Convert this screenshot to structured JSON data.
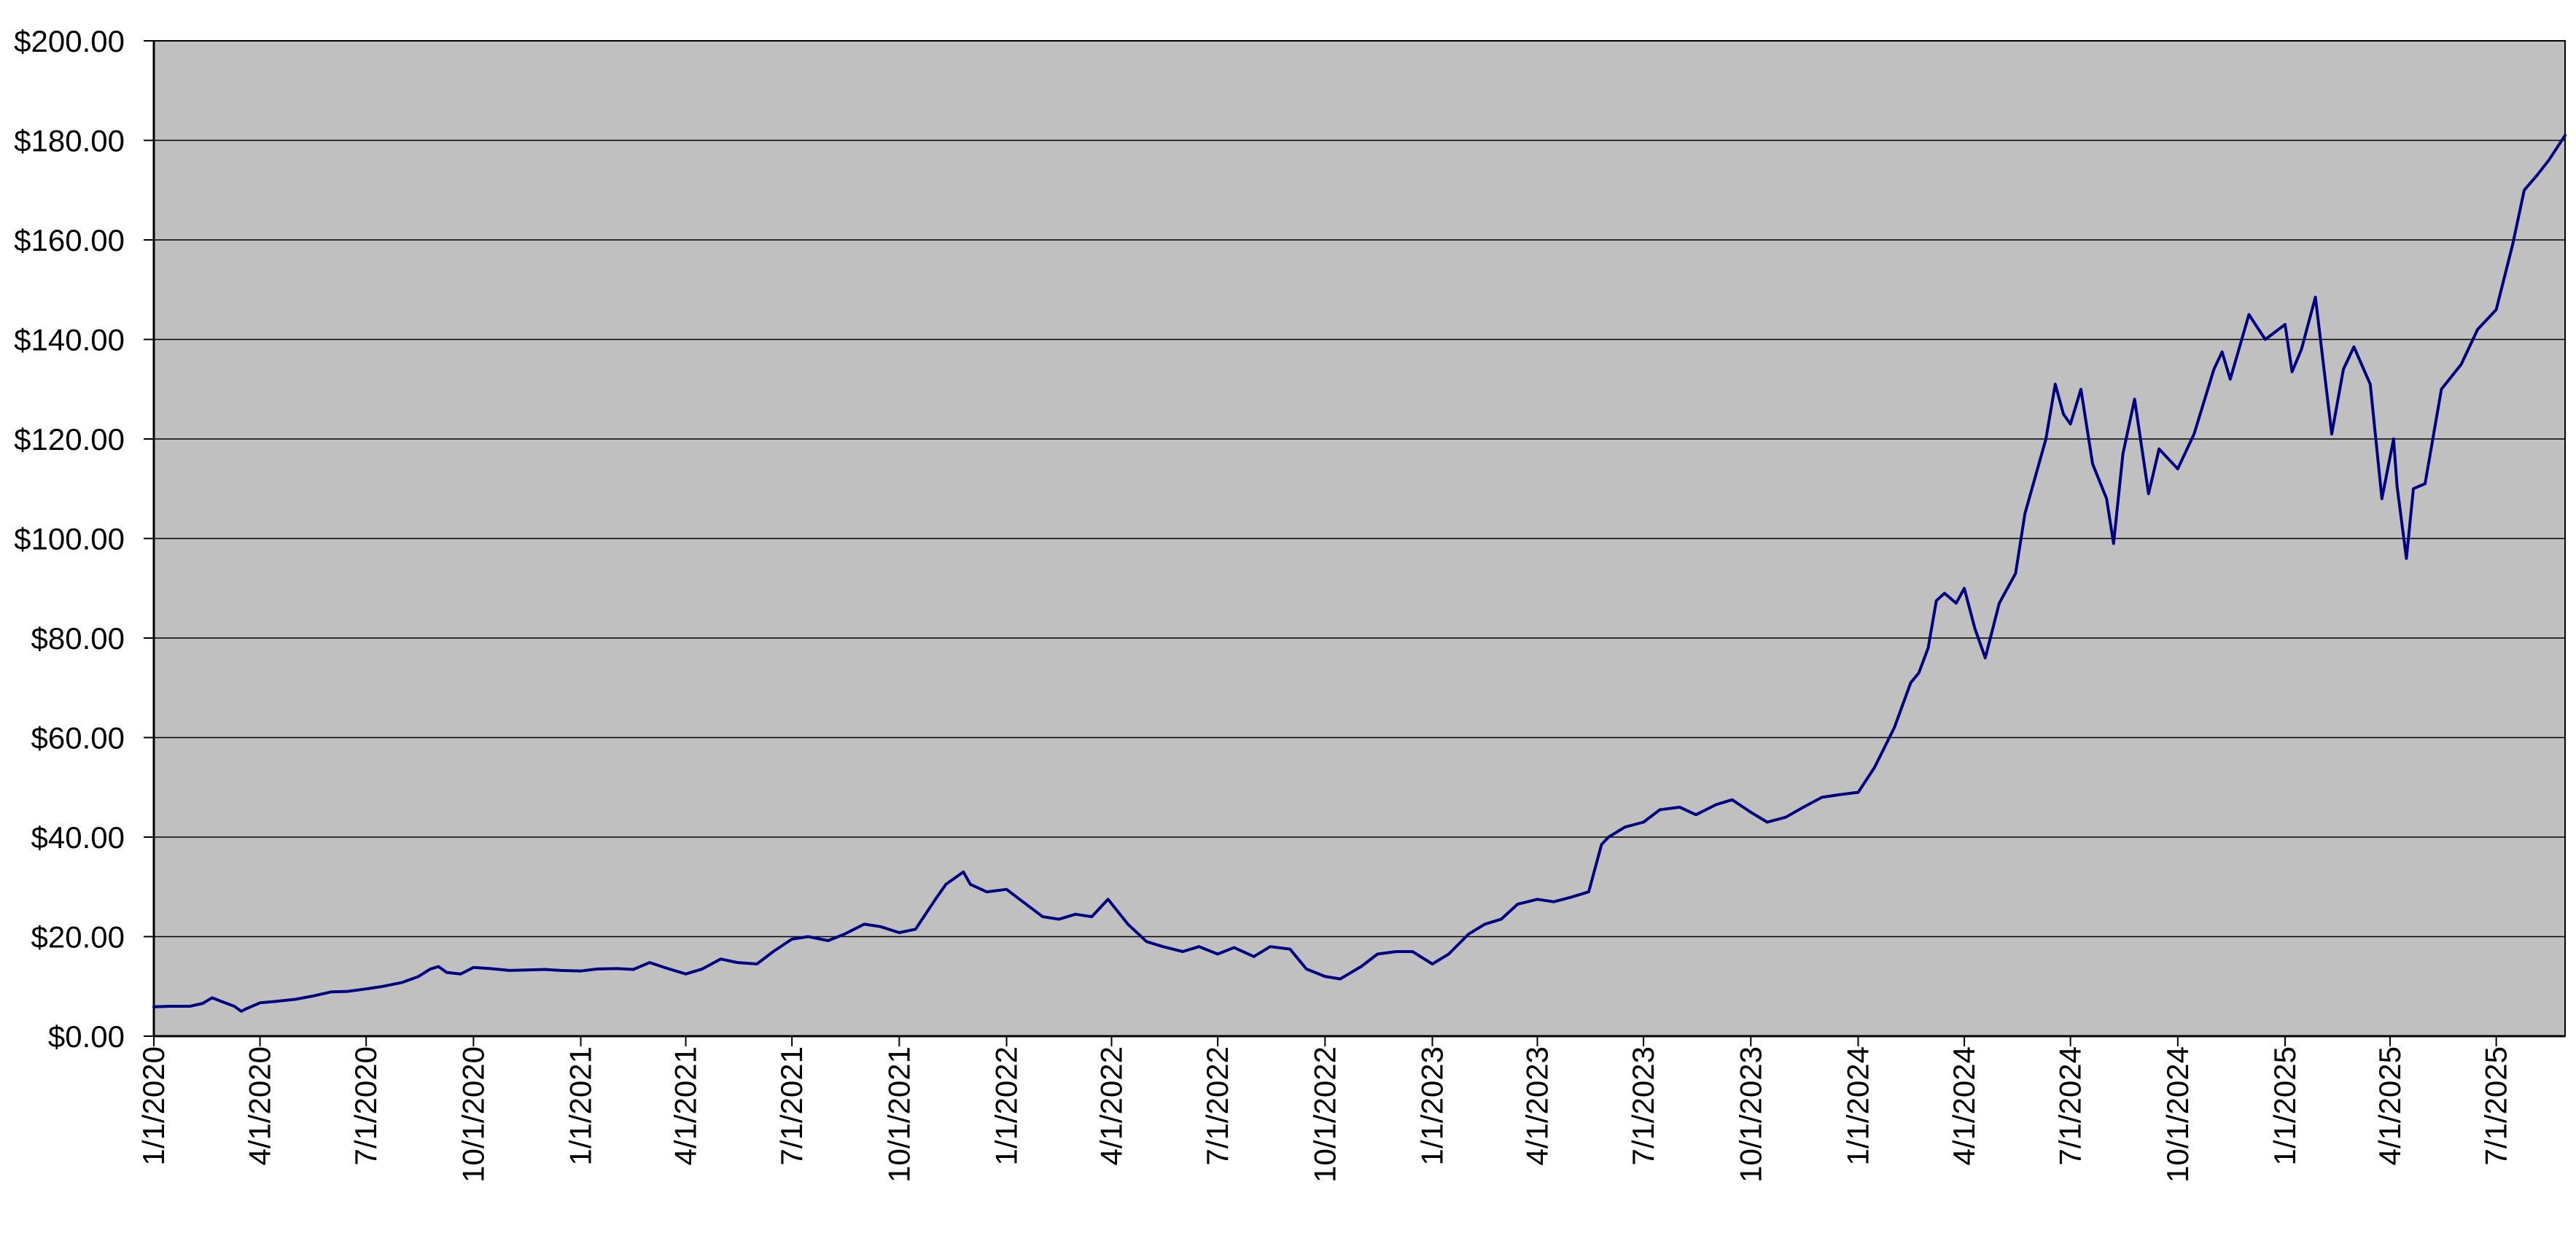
{
  "chart_data": {
    "type": "line",
    "title": "",
    "xlabel": "",
    "ylabel": "",
    "x_tick_labels": [
      "1/1/2020",
      "4/1/2020",
      "7/1/2020",
      "10/1/2020",
      "1/1/2021",
      "4/1/2021",
      "7/1/2021",
      "10/1/2021",
      "1/1/2022",
      "4/1/2022",
      "7/1/2022",
      "10/1/2022",
      "1/1/2023",
      "4/1/2023",
      "7/1/2023",
      "10/1/2023",
      "1/1/2024",
      "4/1/2024",
      "7/1/2024",
      "10/1/2024",
      "1/1/2025",
      "4/1/2025",
      "7/1/2025"
    ],
    "y_tick_labels": [
      "$0.00",
      "$20.00",
      "$40.00",
      "$60.00",
      "$80.00",
      "$100.00",
      "$120.00",
      "$140.00",
      "$160.00",
      "$180.00",
      "$200.00"
    ],
    "ylim": [
      0,
      200
    ],
    "xlim": [
      "2020-01-01",
      "2025-08-29"
    ],
    "grid": "horizontal",
    "legend": "none",
    "colors": {
      "plot_background": "#c0c0c0",
      "line": "#000080",
      "grid": "#000000",
      "axis": "#000000"
    },
    "series": [
      {
        "name": "",
        "x": [
          "2020-01-01",
          "2020-01-15",
          "2020-02-01",
          "2020-02-12",
          "2020-02-20",
          "2020-03-01",
          "2020-03-10",
          "2020-03-16",
          "2020-03-20",
          "2020-04-01",
          "2020-04-15",
          "2020-05-01",
          "2020-05-15",
          "2020-06-01",
          "2020-06-15",
          "2020-07-01",
          "2020-07-15",
          "2020-08-01",
          "2020-08-15",
          "2020-08-25",
          "2020-09-01",
          "2020-09-08",
          "2020-09-20",
          "2020-10-01",
          "2020-10-15",
          "2020-11-01",
          "2020-11-15",
          "2020-12-01",
          "2020-12-15",
          "2021-01-01",
          "2021-01-15",
          "2021-02-01",
          "2021-02-15",
          "2021-03-01",
          "2021-03-15",
          "2021-04-01",
          "2021-04-15",
          "2021-05-01",
          "2021-05-15",
          "2021-06-01",
          "2021-06-15",
          "2021-07-01",
          "2021-07-15",
          "2021-08-01",
          "2021-08-15",
          "2021-09-01",
          "2021-09-15",
          "2021-10-01",
          "2021-10-15",
          "2021-11-01",
          "2021-11-10",
          "2021-11-25",
          "2021-12-01",
          "2021-12-15",
          "2022-01-01",
          "2022-01-15",
          "2022-02-01",
          "2022-02-15",
          "2022-03-01",
          "2022-03-15",
          "2022-03-29",
          "2022-04-15",
          "2022-05-01",
          "2022-05-15",
          "2022-06-01",
          "2022-06-15",
          "2022-07-01",
          "2022-07-15",
          "2022-08-01",
          "2022-08-15",
          "2022-09-01",
          "2022-09-15",
          "2022-10-01",
          "2022-10-14",
          "2022-11-01",
          "2022-11-15",
          "2022-12-01",
          "2022-12-15",
          "2023-01-01",
          "2023-01-15",
          "2023-02-01",
          "2023-02-15",
          "2023-03-01",
          "2023-03-15",
          "2023-04-01",
          "2023-04-15",
          "2023-05-01",
          "2023-05-15",
          "2023-05-26",
          "2023-06-01",
          "2023-06-15",
          "2023-07-01",
          "2023-07-15",
          "2023-08-01",
          "2023-08-15",
          "2023-09-01",
          "2023-09-15",
          "2023-10-01",
          "2023-10-15",
          "2023-10-31",
          "2023-11-15",
          "2023-12-01",
          "2023-12-15",
          "2024-01-01",
          "2024-01-15",
          "2024-02-01",
          "2024-02-15",
          "2024-02-22",
          "2024-03-01",
          "2024-03-08",
          "2024-03-15",
          "2024-03-25",
          "2024-04-01",
          "2024-04-10",
          "2024-04-19",
          "2024-05-01",
          "2024-05-15",
          "2024-05-23",
          "2024-06-01",
          "2024-06-10",
          "2024-06-18",
          "2024-06-25",
          "2024-07-01",
          "2024-07-10",
          "2024-07-20",
          "2024-08-01",
          "2024-08-07",
          "2024-08-15",
          "2024-08-25",
          "2024-09-06",
          "2024-09-15",
          "2024-10-01",
          "2024-10-15",
          "2024-11-01",
          "2024-11-08",
          "2024-11-15",
          "2024-12-01",
          "2024-12-15",
          "2025-01-01",
          "2025-01-07",
          "2025-01-15",
          "2025-01-27",
          "2025-02-10",
          "2025-02-20",
          "2025-03-01",
          "2025-03-15",
          "2025-03-25",
          "2025-04-04",
          "2025-04-07",
          "2025-04-15",
          "2025-04-21",
          "2025-05-01",
          "2025-05-15",
          "2025-06-01",
          "2025-06-15",
          "2025-07-01",
          "2025-07-15",
          "2025-07-25",
          "2025-08-05",
          "2025-08-15",
          "2025-08-29"
        ],
        "values": [
          5.9,
          6.0,
          6.0,
          6.6,
          7.7,
          6.8,
          6.0,
          5.0,
          5.5,
          6.7,
          7.0,
          7.4,
          8.0,
          8.9,
          9.0,
          9.5,
          10.0,
          10.8,
          12.0,
          13.5,
          14.0,
          12.8,
          12.5,
          13.8,
          13.6,
          13.2,
          13.3,
          13.4,
          13.2,
          13.1,
          13.5,
          13.6,
          13.4,
          14.8,
          13.7,
          12.5,
          13.5,
          15.5,
          14.8,
          14.5,
          17.0,
          19.5,
          20.0,
          19.2,
          20.5,
          22.5,
          22.0,
          20.8,
          21.5,
          27.5,
          30.5,
          33.0,
          30.5,
          29.0,
          29.5,
          27.0,
          24.0,
          23.5,
          24.5,
          24.0,
          27.5,
          22.5,
          19.0,
          18.0,
          17.0,
          18.0,
          16.5,
          17.8,
          16.0,
          18.0,
          17.5,
          13.5,
          12.0,
          11.5,
          14.0,
          16.5,
          17.0,
          17.0,
          14.5,
          16.5,
          20.5,
          22.5,
          23.5,
          26.5,
          27.5,
          27.0,
          28.0,
          29.0,
          38.5,
          40.0,
          42.0,
          43.0,
          45.5,
          46.0,
          44.5,
          46.5,
          47.5,
          45.0,
          43.0,
          44.0,
          46.0,
          48.0,
          48.5,
          49.0,
          54.0,
          62.0,
          71.0,
          73.0,
          78.0,
          87.5,
          89.0,
          87.0,
          90.0,
          82.0,
          76.0,
          87.0,
          93.0,
          105.0,
          112.5,
          120.0,
          131.0,
          125.0,
          123.0,
          130.0,
          115.0,
          108.0,
          99.0,
          117.0,
          128.0,
          109.0,
          118.0,
          114.0,
          121.0,
          134.0,
          137.5,
          132.0,
          145.0,
          140.0,
          143.0,
          133.5,
          138.0,
          148.5,
          121.0,
          134.0,
          138.5,
          131.0,
          108.0,
          120.0,
          110.5,
          96.0,
          110.0,
          111.0,
          130.0,
          135.0,
          142.0,
          146.0,
          159.0,
          170.0,
          173.0,
          176.0,
          181.0
        ]
      }
    ]
  }
}
